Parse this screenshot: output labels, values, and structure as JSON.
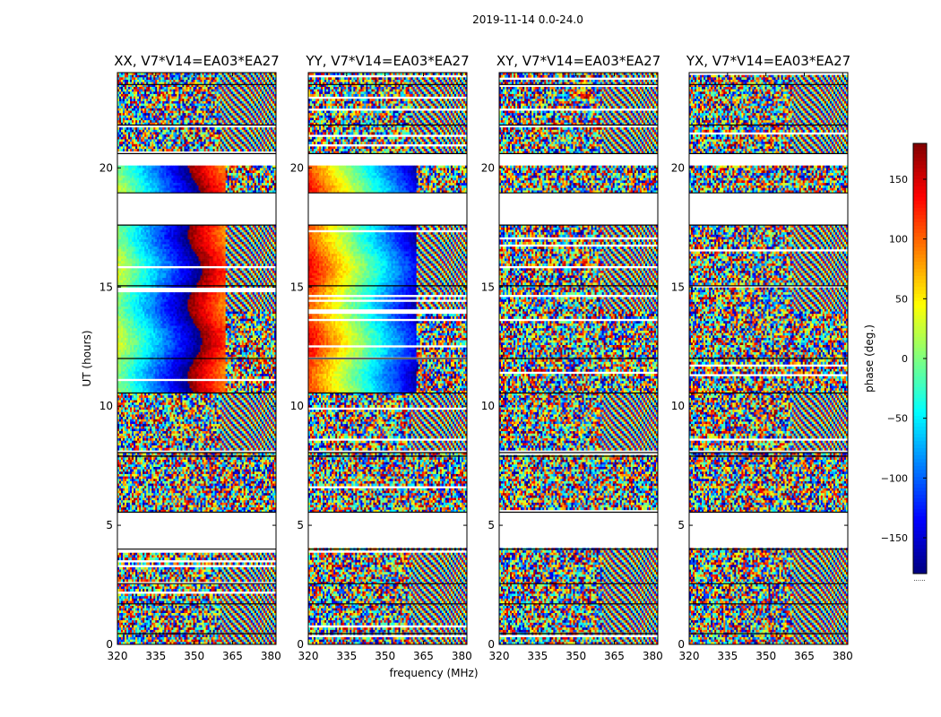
{
  "suptitle": "2019-11-14 0.0-24.0",
  "chart_data": {
    "type": "heatmap",
    "panels": [
      {
        "title": "XX, V7*V14=EA03*EA27",
        "kind": "parallel"
      },
      {
        "title": "YY, V7*V14=EA03*EA27",
        "kind": "parallel"
      },
      {
        "title": "XY, V7*V14=EA03*EA27",
        "kind": "cross"
      },
      {
        "title": "YX, V7*V14=EA03*EA27",
        "kind": "cross"
      }
    ],
    "xlabel": "frequency (MHz)",
    "ylabel": "UT (hours)",
    "xlim": [
      320,
      382
    ],
    "ylim": [
      0,
      24
    ],
    "xticks": [
      "320",
      "335",
      "350",
      "365",
      "380"
    ],
    "yticks": [
      "0",
      "5",
      "10",
      "15",
      "20"
    ],
    "colorbar": {
      "label": "phase (deg.)",
      "range": [
        -180,
        180
      ],
      "ticks": [
        "150",
        "100",
        "50",
        "0",
        "−50",
        "−100",
        "−150"
      ],
      "colormap": "jet",
      "footnote": "......"
    },
    "data_segments_ut": [
      [
        0,
        4.05
      ],
      [
        5.55,
        8.05
      ],
      [
        8.15,
        10.55
      ],
      [
        10.55,
        17.6
      ],
      [
        18.95,
        20.1
      ],
      [
        20.6,
        24
      ]
    ],
    "no_data_ut": [
      [
        4.05,
        5.55
      ],
      [
        17.6,
        18.95
      ],
      [
        20.1,
        20.6
      ]
    ]
  },
  "colors": {
    "jet": [
      "#00007f",
      "#0000ff",
      "#007fff",
      "#00ffff",
      "#7fff7f",
      "#ffff00",
      "#ff7f00",
      "#ff0000",
      "#7f0000"
    ],
    "background": "#ffffff",
    "axis": "#000000"
  }
}
